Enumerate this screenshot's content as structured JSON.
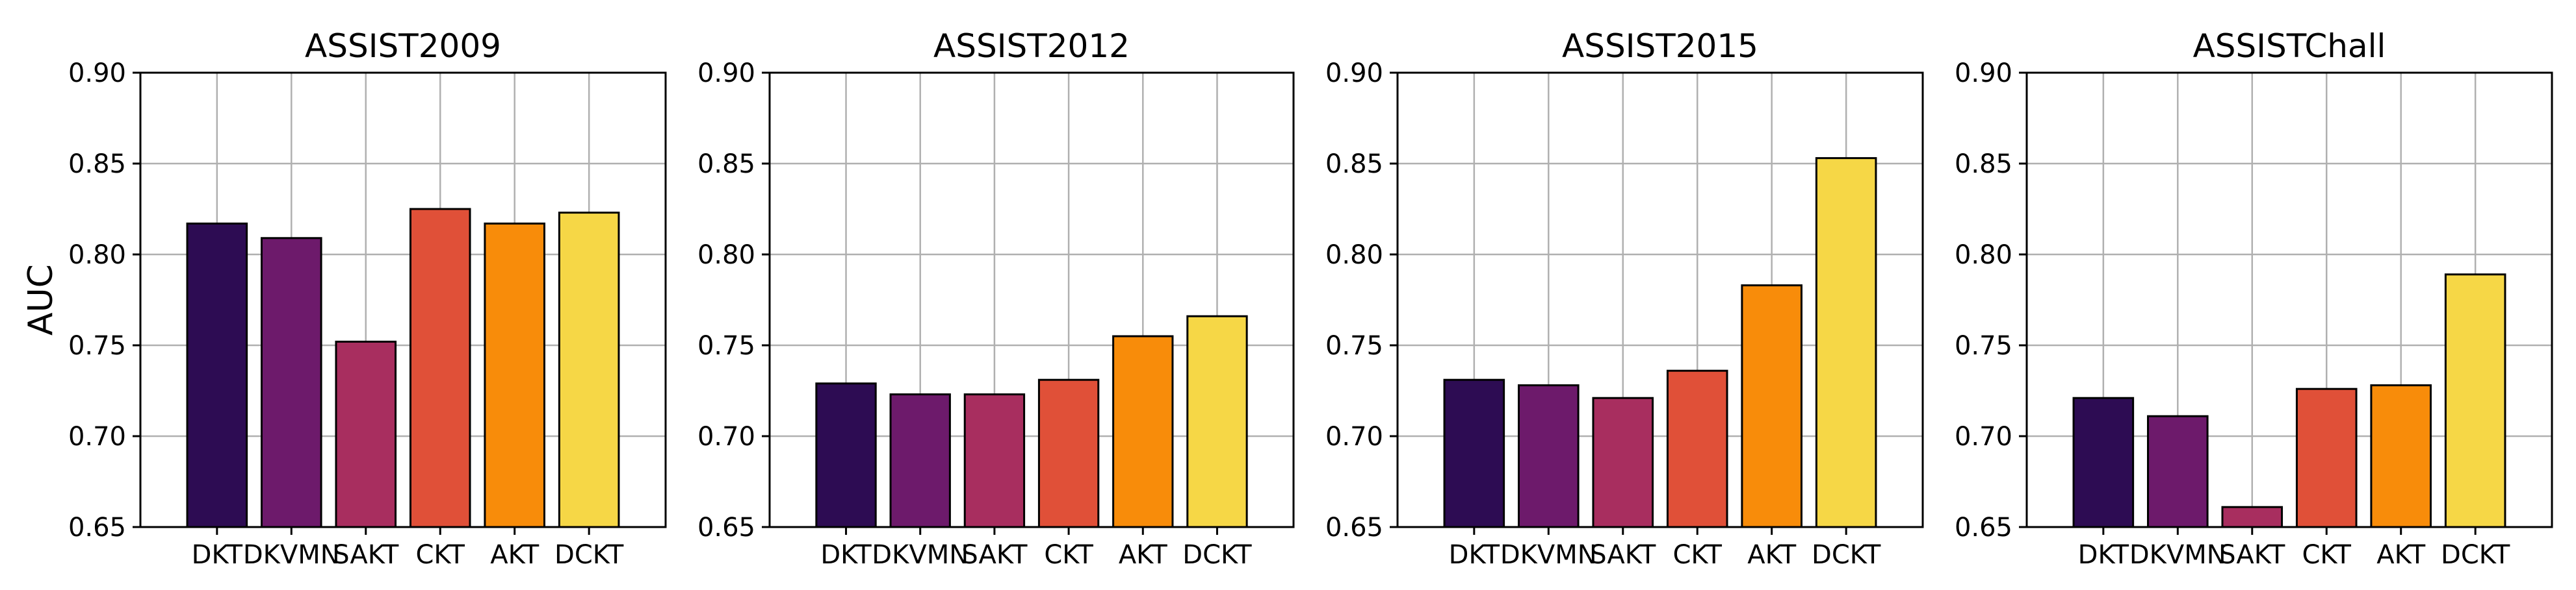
{
  "chart_data": [
    {
      "type": "bar",
      "title": "ASSIST2009",
      "ylabel": "AUC",
      "xlabel": "",
      "categories": [
        "DKT",
        "DKVMN",
        "SAKT",
        "CKT",
        "AKT",
        "DCKT"
      ],
      "values": [
        0.817,
        0.809,
        0.752,
        0.825,
        0.817,
        0.823
      ],
      "ylim": [
        0.65,
        0.9
      ],
      "yticks": [
        "0.65",
        "0.70",
        "0.75",
        "0.80",
        "0.85",
        "0.90"
      ],
      "grid": true
    },
    {
      "type": "bar",
      "title": "ASSIST2012",
      "ylabel": "",
      "xlabel": "",
      "categories": [
        "DKT",
        "DKVMN",
        "SAKT",
        "CKT",
        "AKT",
        "DCKT"
      ],
      "values": [
        0.729,
        0.723,
        0.723,
        0.731,
        0.755,
        0.766
      ],
      "ylim": [
        0.65,
        0.9
      ],
      "yticks": [
        "0.65",
        "0.70",
        "0.75",
        "0.80",
        "0.85",
        "0.90"
      ],
      "grid": true
    },
    {
      "type": "bar",
      "title": "ASSIST2015",
      "ylabel": "",
      "xlabel": "",
      "categories": [
        "DKT",
        "DKVMN",
        "SAKT",
        "CKT",
        "AKT",
        "DCKT"
      ],
      "values": [
        0.731,
        0.728,
        0.721,
        0.736,
        0.783,
        0.853
      ],
      "ylim": [
        0.65,
        0.9
      ],
      "yticks": [
        "0.65",
        "0.70",
        "0.75",
        "0.80",
        "0.85",
        "0.90"
      ],
      "grid": true
    },
    {
      "type": "bar",
      "title": "ASSISTChall",
      "ylabel": "",
      "xlabel": "",
      "categories": [
        "DKT",
        "DKVMN",
        "SAKT",
        "CKT",
        "AKT",
        "DCKT"
      ],
      "values": [
        0.721,
        0.711,
        0.661,
        0.726,
        0.728,
        0.789
      ],
      "ylim": [
        0.65,
        0.9
      ],
      "yticks": [
        "0.65",
        "0.70",
        "0.75",
        "0.80",
        "0.85",
        "0.90"
      ],
      "grid": true
    }
  ],
  "colors": {
    "bars": [
      "#2d0c53",
      "#6d1a6b",
      "#a82e5f",
      "#e05038",
      "#f88c0a",
      "#f6d746"
    ],
    "grid": "#b0b0b0",
    "edge": "#000000"
  }
}
